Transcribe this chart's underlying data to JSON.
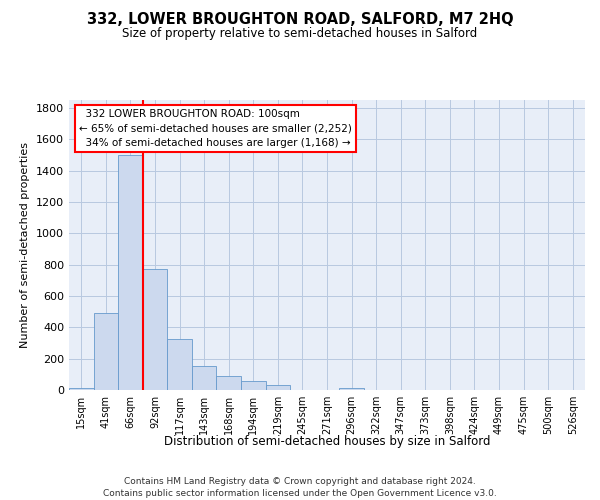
{
  "title": "332, LOWER BROUGHTON ROAD, SALFORD, M7 2HQ",
  "subtitle": "Size of property relative to semi-detached houses in Salford",
  "xlabel": "Distribution of semi-detached houses by size in Salford",
  "ylabel": "Number of semi-detached properties",
  "bin_labels": [
    "15sqm",
    "41sqm",
    "66sqm",
    "92sqm",
    "117sqm",
    "143sqm",
    "168sqm",
    "194sqm",
    "219sqm",
    "245sqm",
    "271sqm",
    "296sqm",
    "322sqm",
    "347sqm",
    "373sqm",
    "398sqm",
    "424sqm",
    "449sqm",
    "475sqm",
    "500sqm",
    "526sqm"
  ],
  "bin_values": [
    15,
    490,
    1500,
    770,
    325,
    155,
    90,
    55,
    30,
    0,
    0,
    15,
    0,
    0,
    0,
    0,
    0,
    0,
    0,
    0,
    0
  ],
  "bar_color": "#ccd9ee",
  "bar_edge_color": "#6699cc",
  "vline_x_pos": 2.5,
  "vline_color": "red",
  "property_label": "332 LOWER BROUGHTON ROAD: 100sqm",
  "smaller_pct": "65%",
  "smaller_count": "2,252",
  "larger_pct": "34%",
  "larger_count": "1,168",
  "annotation_box_edgecolor": "red",
  "ylim": [
    0,
    1850
  ],
  "yticks": [
    0,
    200,
    400,
    600,
    800,
    1000,
    1200,
    1400,
    1600,
    1800
  ],
  "bg_color": "#e8eef8",
  "footer1": "Contains HM Land Registry data © Crown copyright and database right 2024.",
  "footer2": "Contains public sector information licensed under the Open Government Licence v3.0."
}
